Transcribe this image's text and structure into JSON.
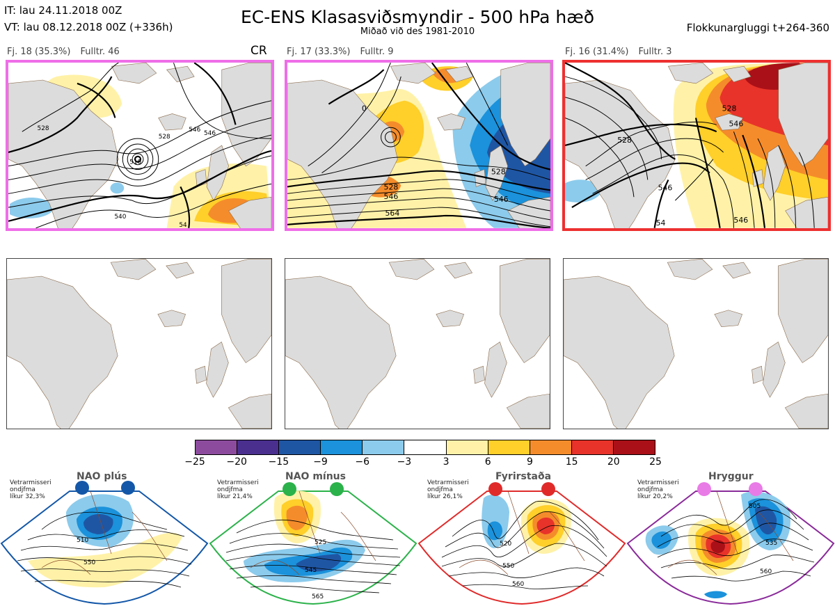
{
  "header": {
    "init_time": "IT: lau 24.11.2018 00Z",
    "valid_time": "VT: lau 08.12.2018 00Z  (+336h)",
    "title": "EC-ENS Klasasviðsmyndir - 500 hPa hæð",
    "subtitle": "Miðað við des 1981-2010",
    "window": "Flokkunargluggi t+264-360"
  },
  "panels": [
    {
      "freq_label": "Fj. 18 (35.3%)",
      "rep_label": "Fulltr. 46",
      "regime_code": "CR",
      "border_color": "#ee6ee8",
      "contour_labels": [
        "528",
        "546",
        "510",
        "528",
        "540",
        "546",
        "54"
      ]
    },
    {
      "freq_label": "Fj. 17 (33.3%)",
      "rep_label": "Fulltr. 9",
      "regime_code": "",
      "border_color": "#ee6ee8",
      "contour_labels": [
        "528",
        "546",
        "564",
        "528",
        "546",
        "0"
      ]
    },
    {
      "freq_label": "Fj. 16 (31.4%)",
      "rep_label": "Fulltr. 3",
      "regime_code": "",
      "border_color": "#ee3030",
      "contour_labels": [
        "528",
        "546",
        "528",
        "546",
        "54",
        "546"
      ]
    }
  ],
  "colorbar": {
    "ticks": [
      "−25",
      "−20",
      "−15",
      "−9",
      "−6",
      "−3",
      "3",
      "6",
      "9",
      "15",
      "20",
      "25"
    ],
    "colors": [
      "#8d4b9e",
      "#4a2f8f",
      "#1f56a4",
      "#1b92db",
      "#8ccbec",
      "#ffffff",
      "#fff2a8",
      "#ffcf2a",
      "#f58c2b",
      "#e8332a",
      "#aa1018"
    ]
  },
  "regimes": [
    {
      "name": "NAO plús",
      "note": [
        "Vetrarmisseri",
        "ondjfma",
        "líkur 32,3%"
      ],
      "color": "#1357a8",
      "labels": [
        "510",
        "550"
      ]
    },
    {
      "name": "NAO mínus",
      "note": [
        "Vetrarmisseri",
        "ondjfma",
        "líkur 21,4%"
      ],
      "color": "#2bb24a",
      "labels": [
        "525",
        "545",
        "565"
      ]
    },
    {
      "name": "Fyrirstaða",
      "note": [
        "Vetrarmisseri",
        "ondjfma",
        "líkur 26,1%"
      ],
      "color": "#e02a2a",
      "labels": [
        "520",
        "550",
        "560"
      ]
    },
    {
      "name": "Hryggur",
      "note": [
        "Vetrarmisseri",
        "ondjfma",
        "líkur 20,2%"
      ],
      "color": "#e97be6",
      "labels": [
        "505",
        "535",
        "560"
      ]
    }
  ]
}
